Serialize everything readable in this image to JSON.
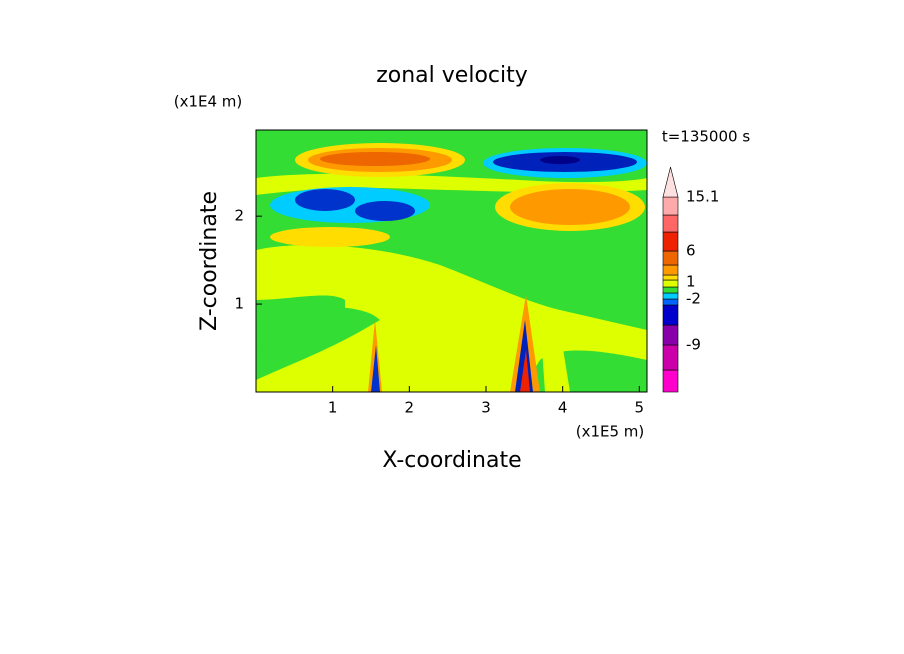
{
  "chart_data": {
    "type": "contour",
    "title": "zonal velocity",
    "x_label": "X-coordinate",
    "y_label": "Z-coordinate",
    "x_unit": "(x1E5 m)",
    "y_unit": "(x1E4 m)",
    "annotation": "t=135000 s",
    "xlim": [
      0,
      5.1
    ],
    "xticks": [
      1,
      2,
      3,
      4,
      5
    ],
    "ylim": [
      0,
      2.98
    ],
    "yticks": [
      1,
      2
    ],
    "colorbar": {
      "labels": [
        15.1,
        6,
        1,
        -2,
        -9
      ],
      "colors": [
        "#ff00cc",
        "#cc00aa",
        "#8800aa",
        "#0000cc",
        "#0066ff",
        "#00ccff",
        "#33dd33",
        "#ddff00",
        "#ffdd00",
        "#ff9900",
        "#ee6600",
        "#ee2200",
        "#ff6666",
        "#ffaaaa",
        "#ffe0e0"
      ]
    }
  }
}
